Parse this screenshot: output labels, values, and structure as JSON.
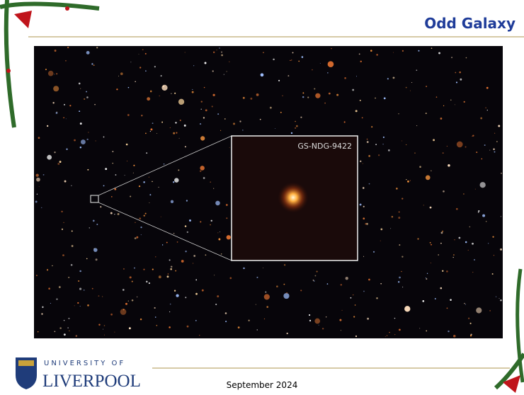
{
  "header": {
    "title": "Odd Galaxy"
  },
  "image": {
    "inset_label": "GS-NDG-9422"
  },
  "logo": {
    "line1": "UNIVERSITY OF",
    "line2": "LIVERPOOL"
  },
  "footer": {
    "date": "September 2024"
  }
}
